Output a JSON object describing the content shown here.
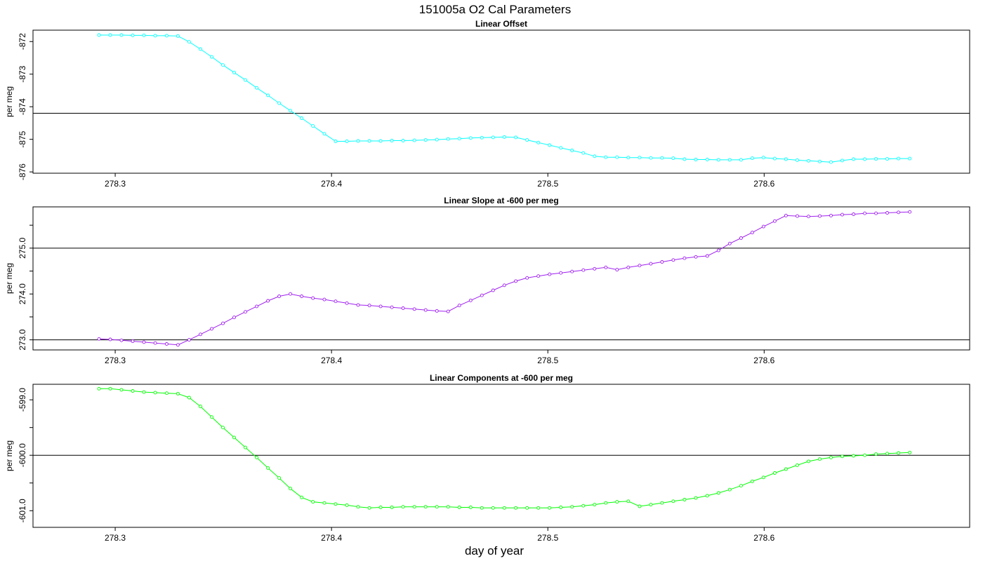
{
  "figure": {
    "title": "151005a   O2 Cal Parameters",
    "xlabel": "day of year"
  },
  "colors": {
    "offset_series": "#00ffff",
    "slope_series": "#a020f0",
    "components_series": "#00ff00",
    "axes": "#000000",
    "reference_lines": "#000000"
  },
  "chart_data": [
    {
      "type": "line",
      "title": "Linear Offset",
      "ylabel": "per meg",
      "xlim": [
        278.262,
        278.695
      ],
      "ylim": [
        -876.04,
        -871.65
      ],
      "xticks": [
        278.3,
        278.4,
        278.5,
        278.6
      ],
      "xtick_labels": [
        "278.3",
        "278.4",
        "278.5",
        "278.6"
      ],
      "yticks": [
        -876,
        -875,
        -874,
        -873,
        -872
      ],
      "ytick_labels": [
        "-876",
        "-875",
        "-874",
        "-873",
        "-872"
      ],
      "hlines": [
        -874.2
      ],
      "grid": false,
      "series": [
        {
          "color": "#00ffff",
          "x": [
            278.2925,
            278.2977,
            278.3029,
            278.3081,
            278.3133,
            278.3185,
            278.3238,
            278.329,
            278.3342,
            278.3394,
            278.3446,
            278.3498,
            278.355,
            278.3602,
            278.3654,
            278.3706,
            278.3758,
            278.381,
            278.3862,
            278.3914,
            278.3967,
            278.4019,
            278.4071,
            278.4123,
            278.4175,
            278.4227,
            278.4279,
            278.4331,
            278.4383,
            278.4435,
            278.4487,
            278.4539,
            278.4591,
            278.4643,
            278.4695,
            278.4747,
            278.4799,
            278.4852,
            278.4904,
            278.4956,
            278.5008,
            278.506,
            278.5112,
            278.5164,
            278.5216,
            278.5268,
            278.532,
            278.5372,
            278.5424,
            278.5476,
            278.5528,
            278.558,
            278.5632,
            278.5684,
            278.5737,
            278.5789,
            278.5841,
            278.5893,
            278.5945,
            278.5997,
            278.6049,
            278.6101,
            278.6153,
            278.6205,
            278.6257,
            278.6309,
            278.6361,
            278.6413,
            278.6465,
            278.6517,
            278.6569,
            278.6621,
            278.6673
          ],
          "values": [
            -871.8,
            -871.8,
            -871.8,
            -871.81,
            -871.81,
            -871.82,
            -871.82,
            -871.83,
            -872.01,
            -872.23,
            -872.47,
            -872.72,
            -872.95,
            -873.18,
            -873.42,
            -873.65,
            -873.89,
            -874.12,
            -874.35,
            -874.59,
            -874.83,
            -875.06,
            -875.06,
            -875.05,
            -875.05,
            -875.05,
            -875.04,
            -875.04,
            -875.03,
            -875.02,
            -875.01,
            -874.99,
            -874.98,
            -874.96,
            -874.95,
            -874.94,
            -874.93,
            -874.94,
            -875.02,
            -875.1,
            -875.18,
            -875.26,
            -875.34,
            -875.42,
            -875.52,
            -875.55,
            -875.55,
            -875.56,
            -875.56,
            -875.57,
            -875.57,
            -875.58,
            -875.61,
            -875.62,
            -875.62,
            -875.63,
            -875.63,
            -875.63,
            -875.58,
            -875.56,
            -875.59,
            -875.61,
            -875.64,
            -875.66,
            -875.68,
            -875.7,
            -875.65,
            -875.61,
            -875.61,
            -875.6,
            -875.6,
            -875.59,
            -875.59
          ]
        }
      ]
    },
    {
      "type": "line",
      "title": "Linear Slope at -600 per meg",
      "ylabel": "per meg",
      "xlim": [
        278.262,
        278.695
      ],
      "ylim": [
        272.78,
        275.9
      ],
      "xticks": [
        278.3,
        278.4,
        278.5,
        278.6
      ],
      "xtick_labels": [
        "278.3",
        "278.4",
        "278.5",
        "278.6"
      ],
      "yticks": [
        273.0,
        273.5,
        274.0,
        274.5,
        275.0,
        275.5
      ],
      "ytick_labels": [
        "273.0",
        "",
        "274.0",
        "",
        "275.0",
        ""
      ],
      "hlines": [
        273.0,
        275.0
      ],
      "grid": false,
      "series": [
        {
          "color": "#a020f0",
          "x": [
            278.2925,
            278.2977,
            278.3029,
            278.3081,
            278.3133,
            278.3185,
            278.3238,
            278.329,
            278.3342,
            278.3394,
            278.3446,
            278.3498,
            278.355,
            278.3602,
            278.3654,
            278.3706,
            278.3758,
            278.381,
            278.3862,
            278.3914,
            278.3967,
            278.4019,
            278.4071,
            278.4123,
            278.4175,
            278.4227,
            278.4279,
            278.4331,
            278.4383,
            278.4435,
            278.4487,
            278.4539,
            278.4591,
            278.4643,
            278.4695,
            278.4747,
            278.4799,
            278.4852,
            278.4904,
            278.4956,
            278.5008,
            278.506,
            278.5112,
            278.5164,
            278.5216,
            278.5268,
            278.532,
            278.5372,
            278.5424,
            278.5476,
            278.5528,
            278.558,
            278.5632,
            278.5684,
            278.5737,
            278.5789,
            278.5841,
            278.5893,
            278.5945,
            278.5997,
            278.6049,
            278.6101,
            278.6153,
            278.6205,
            278.6257,
            278.6309,
            278.6361,
            278.6413,
            278.6465,
            278.6517,
            278.6569,
            278.6621,
            278.6673
          ],
          "values": [
            273.02,
            273.01,
            272.99,
            272.97,
            272.95,
            272.93,
            272.91,
            272.89,
            273.0,
            273.12,
            273.24,
            273.36,
            273.49,
            273.61,
            273.73,
            273.85,
            273.95,
            274.0,
            273.95,
            273.91,
            273.88,
            273.84,
            273.8,
            273.76,
            273.75,
            273.73,
            273.71,
            273.69,
            273.67,
            273.65,
            273.63,
            273.62,
            273.75,
            273.86,
            273.97,
            274.08,
            274.19,
            274.28,
            274.35,
            274.39,
            274.43,
            274.46,
            274.49,
            274.52,
            274.55,
            274.58,
            274.53,
            274.58,
            274.62,
            274.66,
            274.7,
            274.74,
            274.78,
            274.81,
            274.83,
            274.95,
            275.1,
            275.22,
            275.34,
            275.47,
            275.59,
            275.71,
            275.7,
            275.69,
            275.7,
            275.71,
            275.73,
            275.74,
            275.76,
            275.76,
            275.77,
            275.78,
            275.79
          ]
        }
      ]
    },
    {
      "type": "line",
      "title": "Linear Components at -600 per meg",
      "ylabel": "per meg",
      "xlim": [
        278.262,
        278.695
      ],
      "ylim": [
        -601.3,
        -598.72
      ],
      "xticks": [
        278.3,
        278.4,
        278.5,
        278.6
      ],
      "xtick_labels": [
        "278.3",
        "278.4",
        "278.5",
        "278.6"
      ],
      "yticks": [
        -601.0,
        -600.5,
        -600.0,
        -599.5,
        -599.0
      ],
      "ytick_labels": [
        "-601.0",
        "",
        "-600.0",
        "",
        "-599.0"
      ],
      "hlines": [
        -600.0
      ],
      "grid": false,
      "series": [
        {
          "color": "#00ff00",
          "x": [
            278.2925,
            278.2977,
            278.3029,
            278.3081,
            278.3133,
            278.3185,
            278.3238,
            278.329,
            278.3342,
            278.3394,
            278.3446,
            278.3498,
            278.355,
            278.3602,
            278.3654,
            278.3706,
            278.3758,
            278.381,
            278.3862,
            278.3914,
            278.3967,
            278.4019,
            278.4071,
            278.4123,
            278.4175,
            278.4227,
            278.4279,
            278.4331,
            278.4383,
            278.4435,
            278.4487,
            278.4539,
            278.4591,
            278.4643,
            278.4695,
            278.4747,
            278.4799,
            278.4852,
            278.4904,
            278.4956,
            278.5008,
            278.506,
            278.5112,
            278.5164,
            278.5216,
            278.5268,
            278.532,
            278.5372,
            278.5424,
            278.5476,
            278.5528,
            278.558,
            278.5632,
            278.5684,
            278.5737,
            278.5789,
            278.5841,
            278.5893,
            278.5945,
            278.5997,
            278.6049,
            278.6101,
            278.6153,
            278.6205,
            278.6257,
            278.6309,
            278.6361,
            278.6413,
            278.6465,
            278.6517,
            278.6569,
            278.6621,
            278.6673
          ],
          "values": [
            -598.8,
            -598.8,
            -598.82,
            -598.84,
            -598.86,
            -598.87,
            -598.88,
            -598.89,
            -598.96,
            -599.12,
            -599.31,
            -599.5,
            -599.68,
            -599.86,
            -600.04,
            -600.23,
            -600.41,
            -600.6,
            -600.76,
            -600.84,
            -600.86,
            -600.88,
            -600.9,
            -600.93,
            -600.95,
            -600.94,
            -600.94,
            -600.93,
            -600.93,
            -600.93,
            -600.93,
            -600.93,
            -600.94,
            -600.94,
            -600.95,
            -600.95,
            -600.95,
            -600.95,
            -600.95,
            -600.95,
            -600.95,
            -600.94,
            -600.93,
            -600.91,
            -600.89,
            -600.86,
            -600.84,
            -600.83,
            -600.92,
            -600.89,
            -600.86,
            -600.83,
            -600.8,
            -600.77,
            -600.73,
            -600.68,
            -600.62,
            -600.55,
            -600.47,
            -600.4,
            -600.32,
            -600.25,
            -600.18,
            -600.11,
            -600.07,
            -600.04,
            -600.02,
            -600.01,
            -600.0,
            -599.98,
            -599.97,
            -599.96,
            -599.95
          ]
        }
      ]
    }
  ]
}
